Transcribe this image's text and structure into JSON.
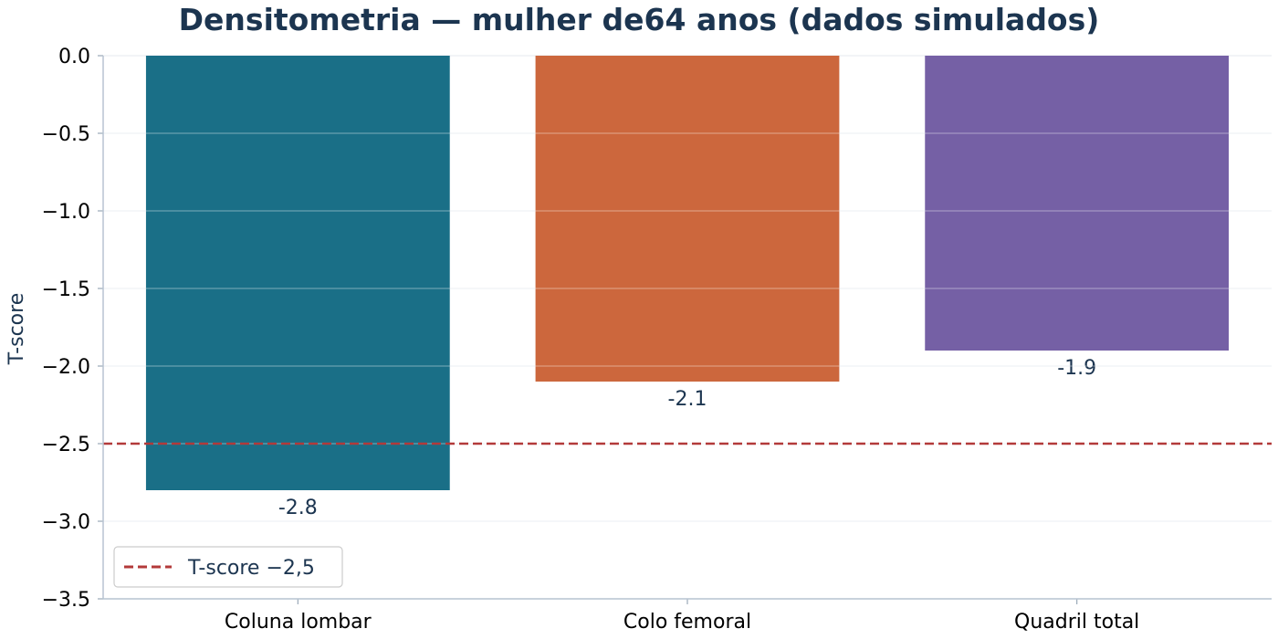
{
  "chart_data": {
    "type": "bar",
    "title": "Densitometria — mulher de64 anos (dados simulados)",
    "xlabel": "",
    "ylabel": "T-score",
    "categories": [
      "Coluna lombar",
      "Colo femoral",
      "Quadril total"
    ],
    "values": [
      -2.8,
      -2.1,
      -1.9
    ],
    "data_labels": [
      "-2.8",
      "-2.1",
      "-1.9"
    ],
    "bar_colors": [
      "#1a6f87",
      "#cc673d",
      "#7560a5"
    ],
    "ylim": [
      -3.5,
      0.0
    ],
    "yticks": [
      0.0,
      -0.5,
      -1.0,
      -1.5,
      -2.0,
      -2.5,
      -3.0,
      -3.5
    ],
    "ytick_labels": [
      "0.0",
      "−0.5",
      "−1.0",
      "−1.5",
      "−2.0",
      "−2.5",
      "−3.0",
      "−3.5"
    ],
    "grid": true,
    "reference_line": {
      "value": -2.5,
      "color": "#b33a3a",
      "style": "dashed"
    },
    "legend": {
      "placement": "lower-left",
      "entries": [
        "T-score −2,5"
      ]
    }
  }
}
